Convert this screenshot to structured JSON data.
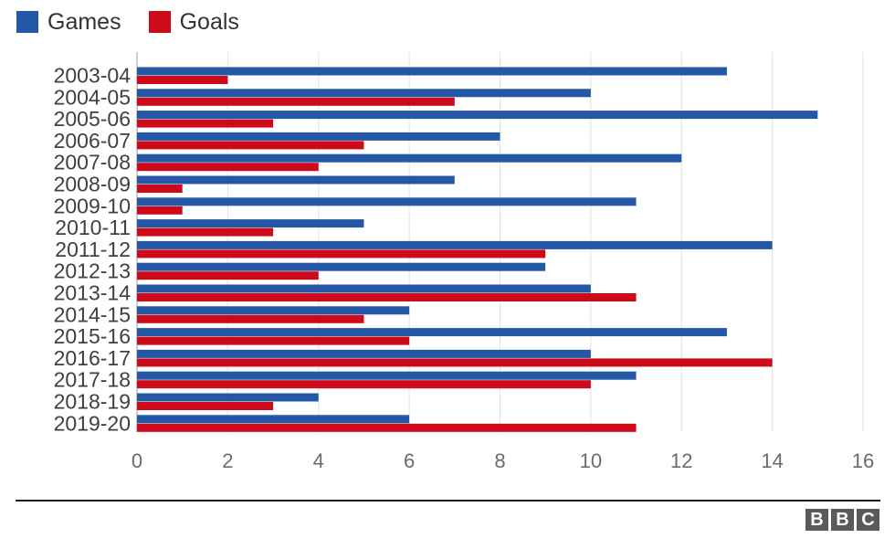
{
  "chart_data": {
    "type": "bar",
    "orientation": "horizontal",
    "categories": [
      "2003-04",
      "2004-05",
      "2005-06",
      "2006-07",
      "2007-08",
      "2008-09",
      "2009-10",
      "2010-11",
      "2011-12",
      "2012-13",
      "2013-14",
      "2014-15",
      "2015-16",
      "2016-17",
      "2017-18",
      "2018-19",
      "2019-20"
    ],
    "series": [
      {
        "name": "Games",
        "color": "#2457a5",
        "values": [
          13,
          10,
          15,
          8,
          12,
          7,
          11,
          5,
          14,
          9,
          10,
          6,
          13,
          10,
          11,
          4,
          6
        ]
      },
      {
        "name": "Goals",
        "color": "#cc0a1a",
        "values": [
          2,
          7,
          3,
          5,
          4,
          1,
          1,
          3,
          9,
          4,
          11,
          5,
          6,
          14,
          10,
          3,
          11
        ]
      }
    ],
    "x_ticks": [
      "0",
      "2",
      "4",
      "6",
      "8",
      "10",
      "12",
      "14",
      "16"
    ],
    "xlim": [
      0,
      16
    ],
    "grid": true,
    "legend_position": "top-left"
  },
  "brand": {
    "logo_letters": [
      "B",
      "B",
      "C"
    ]
  }
}
